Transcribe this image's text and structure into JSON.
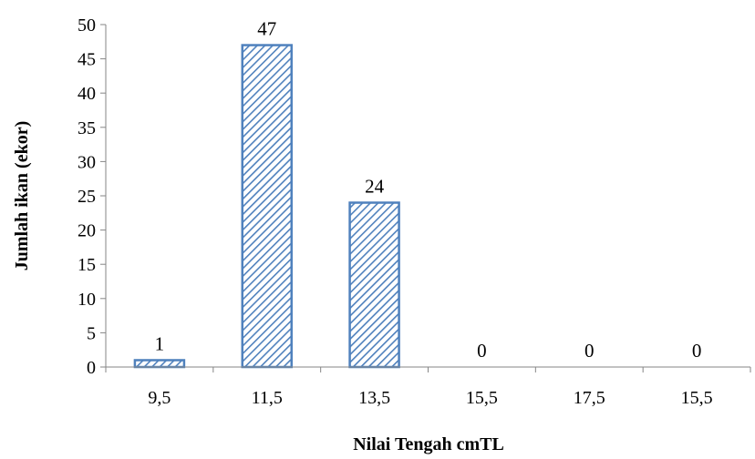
{
  "chart_data": {
    "type": "bar",
    "categories": [
      "9,5",
      "11,5",
      "13,5",
      "15,5",
      "17,5",
      "15,5"
    ],
    "values": [
      1,
      47,
      24,
      0,
      0,
      0
    ],
    "data_labels": [
      "1",
      "47",
      "24",
      "0",
      "0",
      "0"
    ],
    "xlabel": "Nilai Tengah cmTL",
    "ylabel": "Jumlah ikan (ekor)",
    "ylim": [
      0,
      50
    ],
    "yticks": [
      0,
      5,
      10,
      15,
      20,
      25,
      30,
      35,
      40,
      45,
      50
    ],
    "grid": false,
    "bar_fill_pattern": "diagonal-hatch",
    "colors": {
      "bar_stroke": "#4f81bd",
      "hatch": "#4f81bd",
      "axis": "#868686"
    }
  }
}
